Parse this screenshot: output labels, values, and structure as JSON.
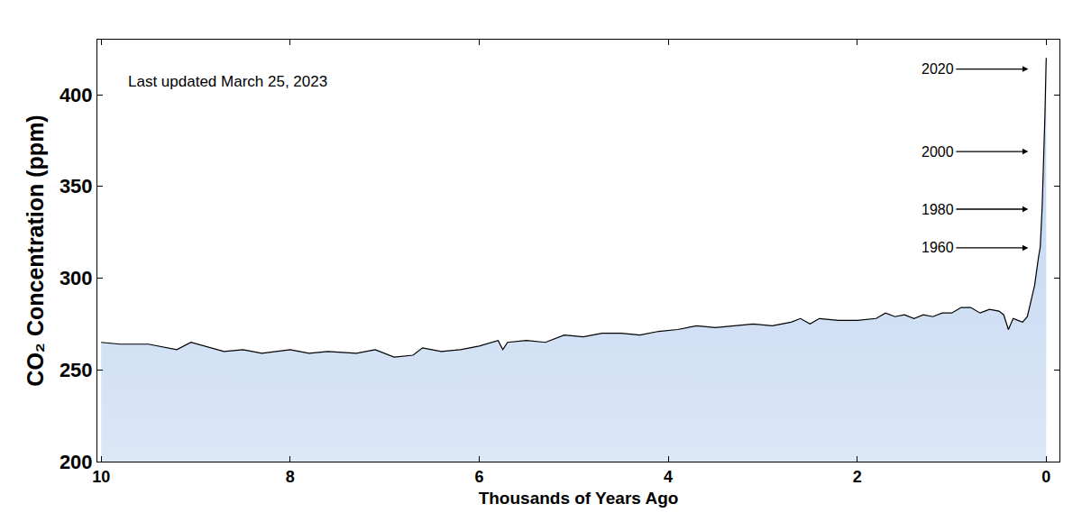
{
  "chart_data": {
    "type": "area",
    "x_label": "Thousands of Years Ago",
    "y_label": "CO₂ Concentration (ppm)",
    "color": "#000000",
    "grid": false,
    "xlim": [
      10.04,
      -0.14
    ],
    "xticks": [
      10,
      8,
      6,
      4,
      2,
      0
    ],
    "ylim": [
      200,
      430
    ],
    "yticks": [
      200,
      250,
      300,
      350,
      400
    ],
    "x": [
      10,
      9.8,
      9.5,
      9.2,
      9.05,
      8.9,
      8.7,
      8.5,
      8.3,
      8.0,
      7.8,
      7.6,
      7.3,
      7.1,
      6.9,
      6.7,
      6.6,
      6.4,
      6.2,
      6.0,
      5.8,
      5.75,
      5.7,
      5.5,
      5.3,
      5.1,
      4.9,
      4.7,
      4.5,
      4.3,
      4.1,
      3.9,
      3.7,
      3.5,
      3.3,
      3.1,
      2.9,
      2.7,
      2.6,
      2.5,
      2.4,
      2.2,
      2.0,
      1.8,
      1.7,
      1.6,
      1.5,
      1.4,
      1.3,
      1.2,
      1.1,
      1.0,
      0.9,
      0.8,
      0.7,
      0.6,
      0.5,
      0.45,
      0.4,
      0.35,
      0.3,
      0.25,
      0.2,
      0.173,
      0.123,
      0.083,
      0.063,
      0.043,
      0.023,
      0.013,
      0.003,
      0.0
    ],
    "values": [
      265,
      264,
      264,
      261,
      265,
      263,
      260,
      261,
      259,
      261,
      259,
      260,
      259,
      261,
      257,
      258,
      262,
      260,
      261,
      263,
      266,
      261,
      265,
      266,
      265,
      269,
      268,
      270,
      270,
      269,
      271,
      272,
      274,
      273,
      274,
      275,
      274,
      276,
      278,
      275,
      278,
      277,
      277,
      278,
      281,
      279,
      280,
      278,
      280,
      279,
      281,
      281,
      284,
      284,
      281,
      283,
      282,
      280,
      272,
      278,
      277,
      276,
      279,
      285,
      296,
      311,
      317,
      339,
      370,
      390,
      414,
      420
    ],
    "annotations": [
      {
        "text": "Last updated March 25, 2023"
      },
      {
        "text": "2020",
        "x": 0.19,
        "y": 414
      },
      {
        "text": "2000",
        "x": 0.19,
        "y": 369
      },
      {
        "text": "1980",
        "x": 0.19,
        "y": 337.6
      },
      {
        "text": "1960",
        "x": 0.19,
        "y": 316.5
      }
    ]
  }
}
